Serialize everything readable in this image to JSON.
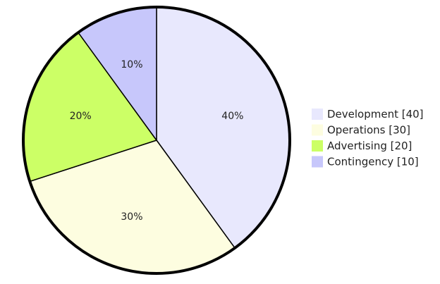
{
  "chart_data": {
    "type": "pie",
    "title": "",
    "series": [
      {
        "name": "Development",
        "value": 40,
        "label": "40%",
        "legend": "Development [40]",
        "color": "#e8e8fd"
      },
      {
        "name": "Operations",
        "value": 30,
        "label": "30%",
        "legend": "Operations [30]",
        "color": "#fdfde0"
      },
      {
        "name": "Advertising",
        "value": 20,
        "label": "20%",
        "legend": "Advertising [20]",
        "color": "#ccff66"
      },
      {
        "name": "Contingency",
        "value": 10,
        "label": "10%",
        "legend": "Contingency [10]",
        "color": "#c7c7fb"
      }
    ],
    "start_angle": "12 o'clock",
    "direction": "clockwise",
    "legend_position": "right"
  }
}
